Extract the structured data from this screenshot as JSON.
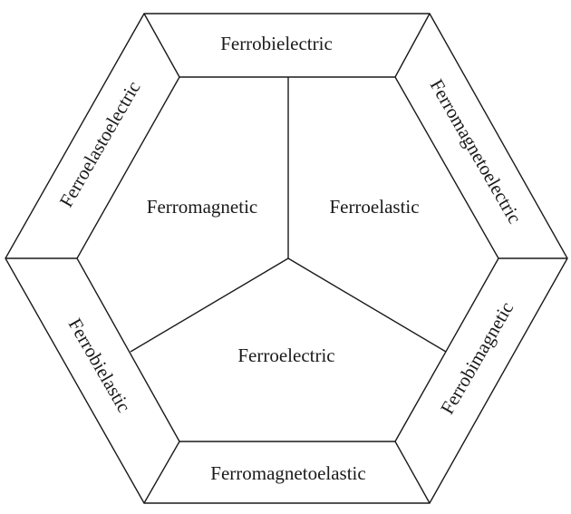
{
  "diagram": {
    "inner": {
      "ferromagnetic": "Ferromagnetic",
      "ferroelastic": "Ferroelastic",
      "ferroelectric": "Ferroelectric"
    },
    "outer": {
      "top": "Ferrobielectric",
      "top_right": "Ferromagnetoelectric",
      "bottom_right": "Ferrobimagnetic",
      "bottom": "Ferromagnetoelastic",
      "bottom_left": "Ferrobielastic",
      "top_left": "Ferroelastoelectric"
    },
    "colors": {
      "stroke": "#1a1a1a",
      "background": "#ffffff",
      "text": "#1a1a1a"
    }
  }
}
